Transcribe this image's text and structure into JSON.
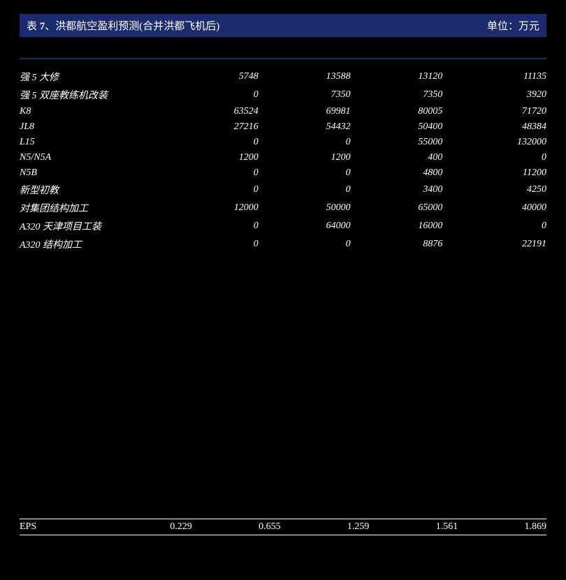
{
  "header": {
    "table_prefix": "表 ",
    "table_num": "7",
    "title_rest": "、洪都航空盈利预测(合并洪都飞机后)",
    "unit": "单位：万元"
  },
  "table": {
    "rows": [
      {
        "label": "强 5 大修",
        "v1": "5748",
        "v2": "13588",
        "v3": "13120",
        "v4": "11135"
      },
      {
        "label": "强 5 双座教练机改装",
        "v1": "0",
        "v2": "7350",
        "v3": "7350",
        "v4": "3920"
      },
      {
        "label": "K8",
        "v1": "63524",
        "v2": "69981",
        "v3": "80005",
        "v4": "71720"
      },
      {
        "label": "JL8",
        "v1": "27216",
        "v2": "54432",
        "v3": "50400",
        "v4": "48384"
      },
      {
        "label": "L15",
        "v1": "0",
        "v2": "0",
        "v3": "55000",
        "v4": "132000"
      },
      {
        "label": "N5/N5A",
        "v1": "1200",
        "v2": "1200",
        "v3": "400",
        "v4": "0"
      },
      {
        "label": "N5B",
        "v1": "0",
        "v2": "0",
        "v3": "4800",
        "v4": "11200"
      },
      {
        "label": "新型初教",
        "v1": "0",
        "v2": "0",
        "v3": "3400",
        "v4": "4250"
      },
      {
        "label": "对集团结构加工",
        "v1": "12000",
        "v2": "50000",
        "v3": "65000",
        "v4": "40000"
      },
      {
        "label": "A320 天津项目工装",
        "v1": "0",
        "v2": "64000",
        "v3": "16000",
        "v4": "0"
      },
      {
        "label": "A320 结构加工",
        "v1": "0",
        "v2": "0",
        "v3": "8876",
        "v4": "22191"
      }
    ]
  },
  "footer": {
    "label": "EPS",
    "v1": "0.229",
    "v2": "0.655",
    "v3": "1.259",
    "v4": "1.561",
    "v5": "1.869"
  },
  "style": {
    "header_bg": "#1e2a6e",
    "page_bg": "#000000",
    "text_color": "#ffffff",
    "rule_color": "#ffffff"
  }
}
